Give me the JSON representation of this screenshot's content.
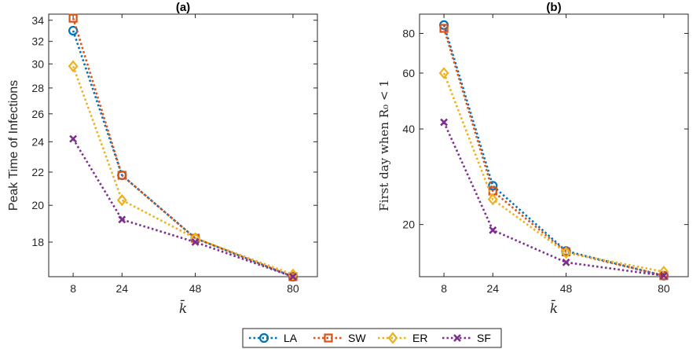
{
  "chart_data": [
    {
      "type": "line",
      "title": "(a)",
      "xlabel": "k̄",
      "ylabel": "Peak Time of Infections",
      "y_scale": "log",
      "ylim": [
        16.3,
        34.6
      ],
      "xlim": [
        0,
        88
      ],
      "x": [
        8,
        24,
        48,
        80
      ],
      "x_tick_labels": [
        "8",
        "24",
        "48",
        "80"
      ],
      "y_ticks": [
        18,
        20,
        22,
        24,
        26,
        28,
        30,
        32,
        34
      ],
      "y_tick_labels": [
        "18",
        "20",
        "22",
        "24",
        "26",
        "28",
        "30",
        "32",
        "34"
      ],
      "series": [
        {
          "name": "LA",
          "values": [
            33.0,
            21.8,
            18.2,
            16.3
          ]
        },
        {
          "name": "SW",
          "values": [
            34.2,
            21.8,
            18.2,
            16.3
          ]
        },
        {
          "name": "ER",
          "values": [
            29.8,
            20.3,
            18.2,
            16.4
          ]
        },
        {
          "name": "SF",
          "values": [
            24.2,
            19.2,
            18.0,
            16.3
          ]
        }
      ]
    },
    {
      "type": "line",
      "title": "(b)",
      "xlabel": "k̄",
      "ylabel": "First day when R₀ < 1",
      "y_scale": "log",
      "ylim": [
        13.7,
        92
      ],
      "xlim": [
        0,
        88
      ],
      "x": [
        8,
        24,
        48,
        80
      ],
      "x_tick_labels": [
        "8",
        "24",
        "48",
        "80"
      ],
      "y_ticks": [
        20,
        40,
        60,
        80
      ],
      "y_tick_labels": [
        "20",
        "40",
        "60",
        "80"
      ],
      "series": [
        {
          "name": "LA",
          "values": [
            85,
            26.5,
            16.5,
            13.8
          ]
        },
        {
          "name": "SW",
          "values": [
            83,
            25.5,
            16.4,
            13.8
          ]
        },
        {
          "name": "ER",
          "values": [
            60,
            24.0,
            16.3,
            14.2
          ]
        },
        {
          "name": "SF",
          "values": [
            42,
            19.2,
            15.2,
            13.8
          ]
        }
      ]
    }
  ],
  "legend": {
    "placement": "bottom-center",
    "items": [
      {
        "name": "LA",
        "color": "#0072BD",
        "marker": "circle"
      },
      {
        "name": "SW",
        "color": "#D95319",
        "marker": "square"
      },
      {
        "name": "ER",
        "color": "#EDB120",
        "marker": "diamond"
      },
      {
        "name": "SF",
        "color": "#7E2F8E",
        "marker": "x"
      }
    ]
  }
}
